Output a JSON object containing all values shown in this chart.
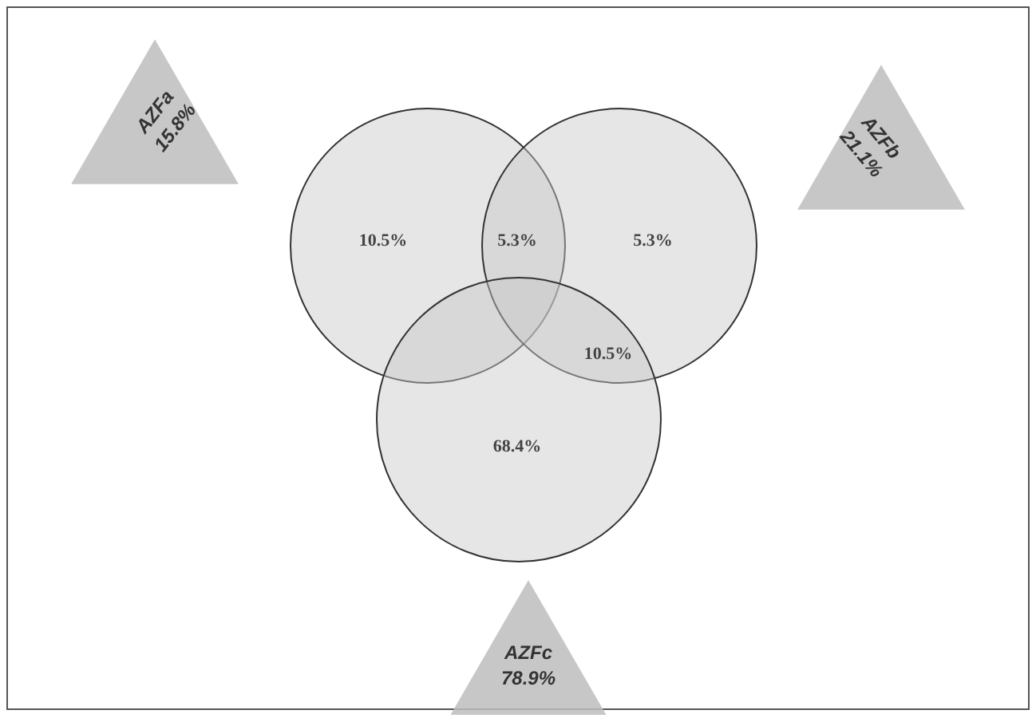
{
  "chart_data": {
    "type": "other",
    "categories": [
      "AZFa",
      "AZFb",
      "AZFc"
    ],
    "values": [
      15.8,
      21.1,
      78.9
    ],
    "value_labels": [
      "15.8%",
      "21.1%",
      "78.9%"
    ],
    "annotations": [
      "10.5%",
      "5.3%",
      "5.3%",
      "10.5%",
      "68.4%"
    ]
  }
}
